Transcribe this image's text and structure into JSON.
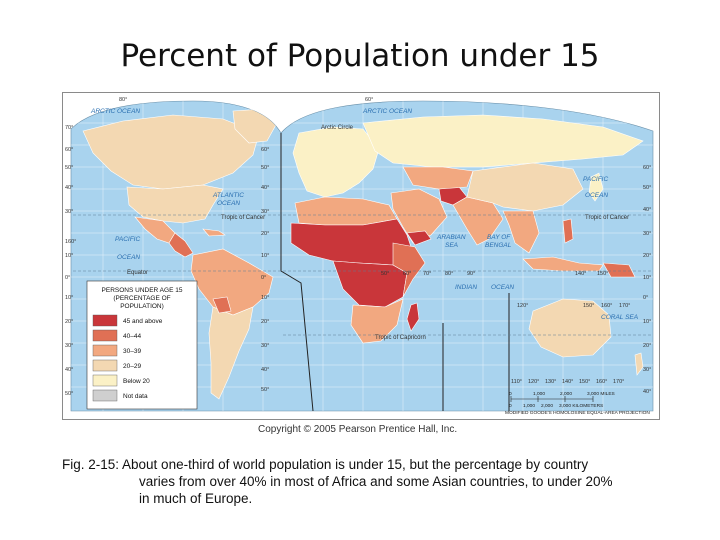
{
  "slide": {
    "title": "Percent of Population under 15"
  },
  "map": {
    "legend": {
      "title_lines": [
        "PERSONS UNDER AGE 15",
        "(PERCENTAGE OF",
        "POPULATION)"
      ],
      "items": [
        {
          "label": "45 and above",
          "color": "#c9363a"
        },
        {
          "label": "40–44",
          "color": "#e07055"
        },
        {
          "label": "30–39",
          "color": "#f2a880"
        },
        {
          "label": "20–29",
          "color": "#f3d8b2"
        },
        {
          "label": "Below 20",
          "color": "#fbf1c6"
        },
        {
          "label": "Not data",
          "color": "#cfcfcf"
        }
      ]
    },
    "water_labels": {
      "arctic_ocean_left": "ARCTIC OCEAN",
      "arctic_ocean_right": "ARCTIC OCEAN",
      "atlantic_1": "ATLANTIC",
      "atlantic_2": "OCEAN",
      "pacific_left_1": "PACIFIC",
      "pacific_left_2": "OCEAN",
      "pacific_right_1": "PACIFIC",
      "pacific_right_2": "OCEAN",
      "indian_1": "INDIAN",
      "indian_2": "OCEAN",
      "arabian_1": "ARABIAN",
      "arabian_2": "SEA",
      "bengal_1": "BAY OF",
      "bengal_2": "BENGAL",
      "coral_sea": "CORAL SEA"
    },
    "line_labels": {
      "arctic_circle": "Arctic Circle",
      "tropic_cancer_left": "Tropic of Cancer",
      "tropic_cancer_right": "Tropic of Cancer",
      "equator": "Equator",
      "tropic_capricorn": "Tropic of Capricorn"
    },
    "lat_labels_left": [
      "70°",
      "60°",
      "50°",
      "40°",
      "30°",
      "160°",
      "10°",
      "0°",
      "10°",
      "20°",
      "30°",
      "40°",
      "50°"
    ],
    "lat_labels_mid": [
      "60°",
      "50°",
      "40°",
      "30°",
      "20°",
      "10°",
      "0°",
      "10°",
      "20°",
      "30°",
      "40°",
      "50°"
    ],
    "lat_labels_right": [
      "60°",
      "50°",
      "40°",
      "30°",
      "20°",
      "10°",
      "0°",
      "10°",
      "20°",
      "30°",
      "40°"
    ],
    "lon_labels_upper": [
      "50°",
      "60°",
      "70°",
      "80°",
      "90°",
      "140°",
      "150°"
    ],
    "lon_labels_lower": [
      "120°",
      "150°",
      "160°",
      "170°"
    ],
    "lon_labels_bottom": [
      "110°",
      "120°",
      "130°",
      "140°",
      "150°",
      "160°",
      "170°"
    ],
    "top_lon": [
      "80°",
      "60°"
    ],
    "scale_bar": {
      "miles": [
        "0",
        "1,000",
        "2,000",
        "3,000 MILES"
      ],
      "km": [
        "0",
        "1,000",
        "2,000",
        "3,000 KILOMETERS"
      ],
      "projection": "MODIFIED GOODE'S HOMOLOSINE EQUAL-AREA PROJECTION"
    }
  },
  "copyright": "Copyright © 2005 Pearson Prentice Hall, Inc.",
  "caption": {
    "line1": "Fig. 2-15: About one-third of world population is under 15, but the percentage by country",
    "line2": "varies from over 40% in most of Africa and some Asian countries, to under 20%",
    "line3": "in much of Europe."
  }
}
